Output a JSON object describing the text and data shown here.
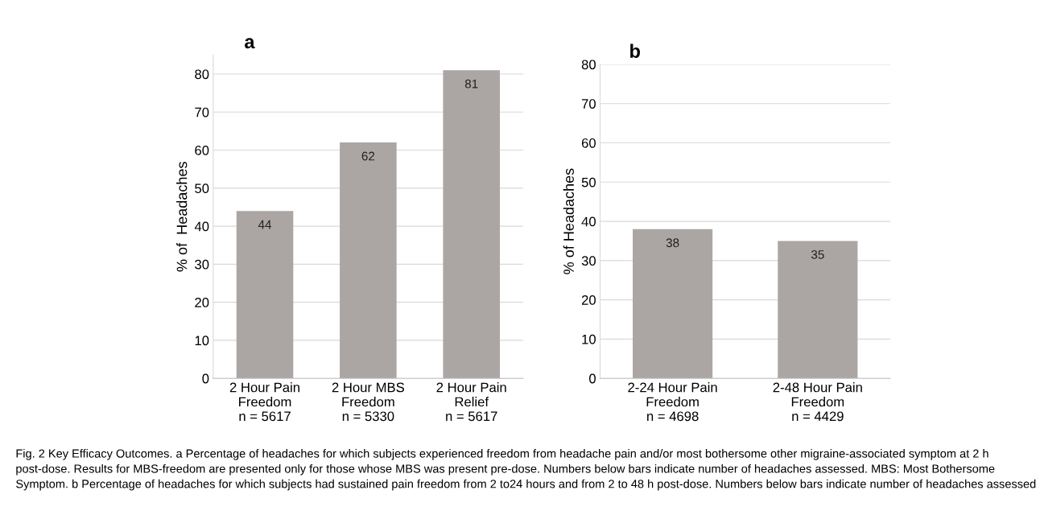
{
  "chart_data": [
    {
      "type": "bar",
      "title": "a",
      "ylabel": "% of  Headaches",
      "categories": [
        "2 Hour Pain\nFreedom\nn = 5617",
        "2 Hour MBS\nFreedom\nn = 5330",
        "2 Hour Pain\nRelief\nn = 5617"
      ],
      "values": [
        44,
        62,
        81
      ],
      "color": "#aba6a4",
      "ylim": [
        0,
        85
      ],
      "yticks": [
        0,
        10,
        20,
        30,
        40,
        50,
        60,
        70,
        80
      ],
      "grid": "y",
      "data_labels": true,
      "annotations": [
        "Fig. 2 Key Efficacy Outcomes. a Percentage of headaches for which subjects experienced freedom from headache pain and/or most bothersome other migraine-associated symptom at 2 h post-dose. Results for MBS-freedom are presented only for those whose MBS was present pre-dose. Numbers below bars indicate number of headaches assessed. MBS: Most Bothersome Symptom. b Percentage of headaches for which subjects had sustained pain freedom from 2 to24 hours and from 2 to 48 h post-dose. Numbers below bars indicate number of headaches assessed"
      ]
    },
    {
      "type": "bar",
      "title": "b",
      "ylabel": "% of Headaches",
      "categories": [
        "2-24 Hour Pain\nFreedom\nn = 4698",
        "2-48 Hour Pain\nFreedom\nn = 4429"
      ],
      "values": [
        38,
        35
      ],
      "color": "#aba6a4",
      "ylim": [
        0,
        80
      ],
      "yticks": [
        0,
        10,
        20,
        30,
        40,
        50,
        60,
        70,
        80
      ],
      "grid": "y",
      "data_labels": true
    }
  ]
}
